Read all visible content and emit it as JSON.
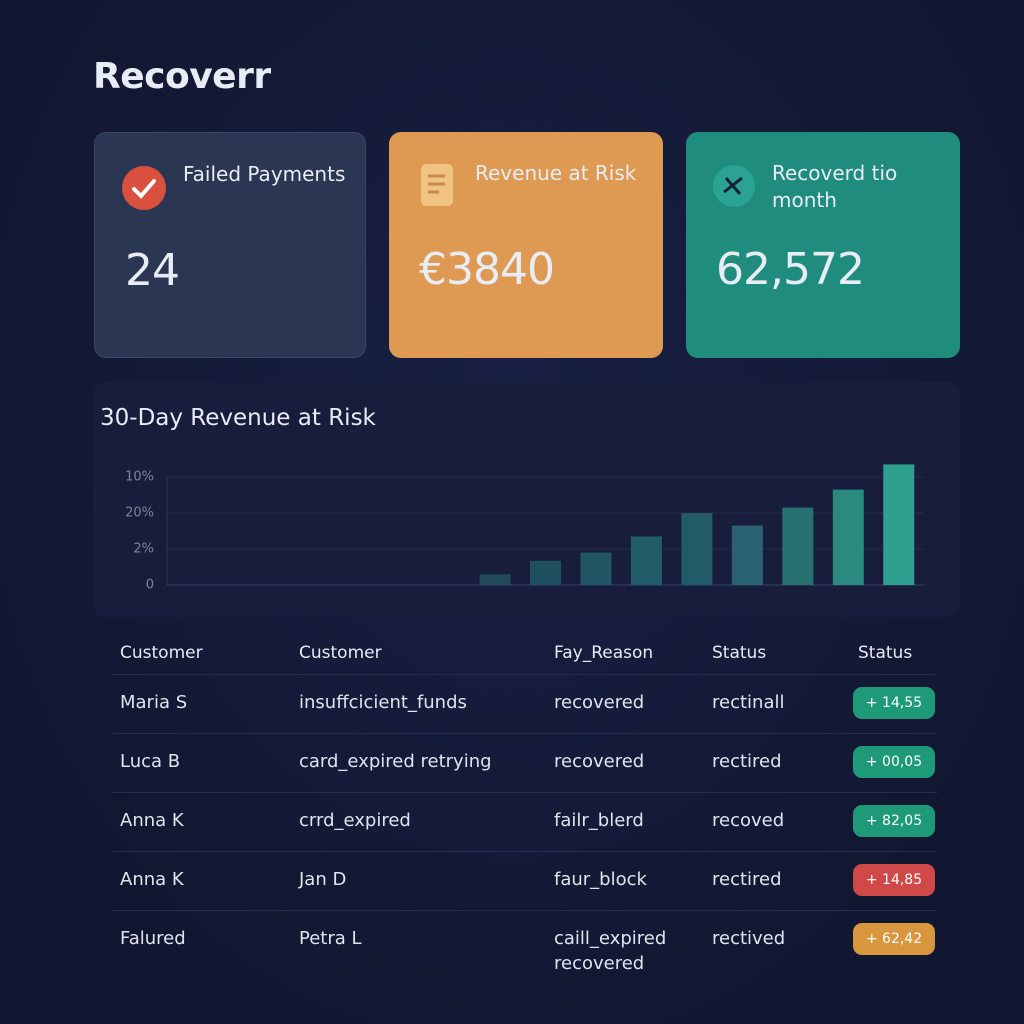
{
  "app": {
    "title": "Recoverr"
  },
  "cards": [
    {
      "title": "Failed Payments",
      "value": "24"
    },
    {
      "title": "Revenue at Risk",
      "value": "€3840"
    },
    {
      "title": "Recoverd tio month",
      "value": "62,572"
    }
  ],
  "chart_data": {
    "type": "bar",
    "title": "30-Day Revenue at Risk",
    "categories": [
      null,
      null,
      null,
      null,
      null,
      null,
      null,
      null,
      null,
      null,
      null,
      null,
      null,
      null,
      null
    ],
    "values": [
      0,
      0,
      0,
      0,
      0,
      0,
      0.3,
      0.67,
      0.9,
      1.35,
      2.0,
      1.65,
      2.15,
      2.65,
      3.35
    ],
    "colors": [
      "#1f4a5c",
      "#1f4a5c",
      "#1f4a5c",
      "#1f4a5c",
      "#1f4a5c",
      "#1f4a5c",
      "#1e4a5a",
      "#1f5060",
      "#205664",
      "#215c68",
      "#225a68",
      "#2a6272",
      "#267070",
      "#2a8a80",
      "#2fa090"
    ],
    "ylim": [
      0,
      3.5
    ],
    "yticks": [
      {
        "value": 0,
        "label": "0"
      },
      {
        "value": 1,
        "label": "2%"
      },
      {
        "value": 2,
        "label": "20%"
      },
      {
        "value": 3,
        "label": "10%"
      }
    ],
    "grid": true
  },
  "table": {
    "headers": [
      "Customer",
      "Customer",
      "Fay_Reason",
      "Status",
      "Status"
    ],
    "rows": [
      [
        "Maria S",
        "insuffcicient_funds",
        "recovered",
        "rectinall",
        "+ 14,55"
      ],
      [
        "Luca B",
        "card_expired retrying",
        "recovered",
        "rectired",
        "+ 00,05"
      ],
      [
        "Anna K",
        "crrd_expired",
        "failr_blerd",
        "recoved",
        "+ 82,05"
      ],
      [
        "Anna K",
        "Jan D",
        "faur_block",
        "rectired",
        "+ 14,85"
      ],
      [
        "Falured",
        "Petra L",
        "caill_expired recovered",
        "rectived",
        "+ 62,42"
      ]
    ],
    "badge_colors": [
      "#1f9a78",
      "#1f9a78",
      "#1f9a78",
      "#d04848",
      "#d8963e"
    ]
  }
}
